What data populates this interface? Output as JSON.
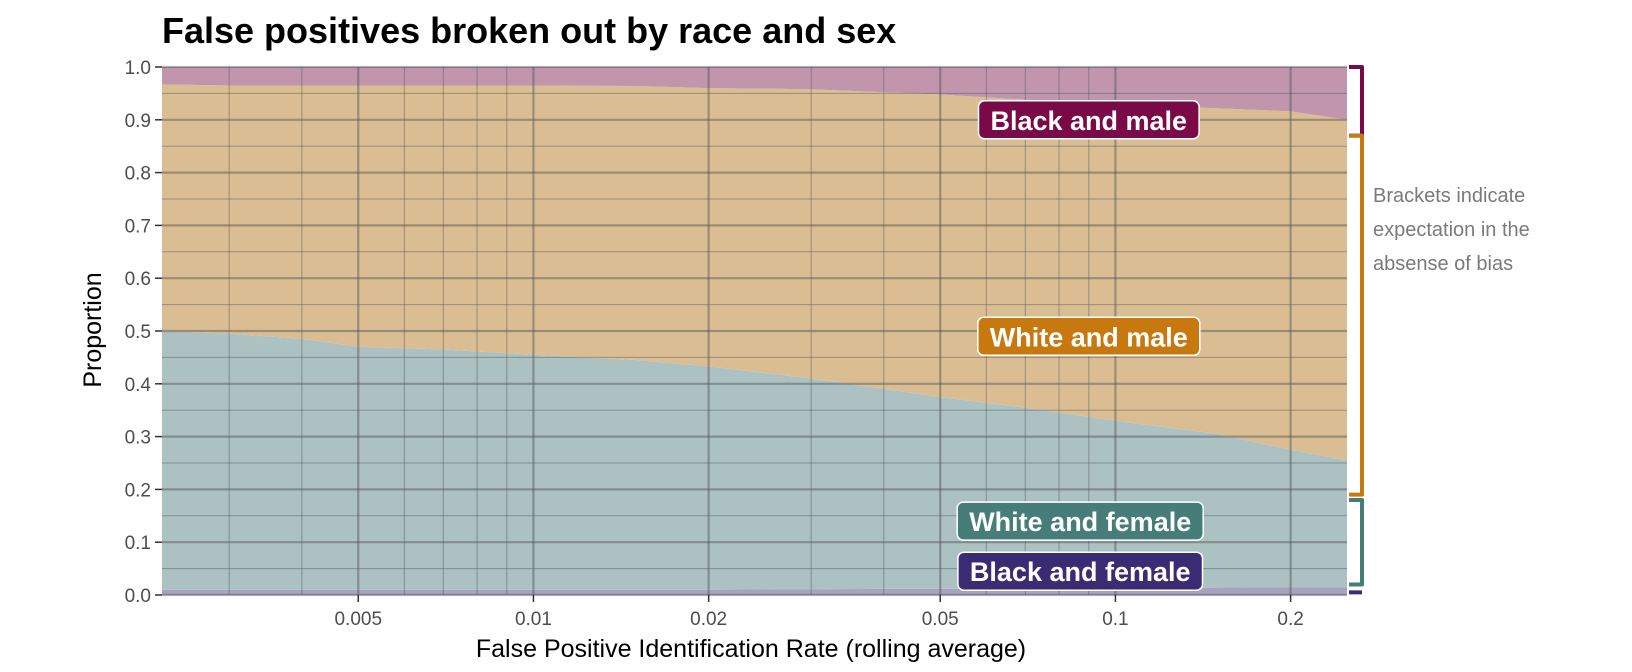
{
  "chart_data": {
    "type": "area",
    "stacked": true,
    "title": "False positives broken out by race and sex",
    "xlabel": "False Positive Identification Rate (rolling average)",
    "ylabel": "Proportion",
    "x_scale": "log",
    "xlim": [
      0.0023,
      0.25
    ],
    "ylim": [
      0,
      1
    ],
    "x_ticks": [
      0.005,
      0.01,
      0.02,
      0.05,
      0.1,
      0.2
    ],
    "x_tick_labels": [
      "0.005",
      "0.01",
      "0.02",
      "0.05",
      "0.1",
      "0.2"
    ],
    "y_ticks": [
      0,
      0.1,
      0.2,
      0.3,
      0.4,
      0.5,
      0.6,
      0.7,
      0.8,
      0.9,
      1.0
    ],
    "y_tick_labels": [
      "0.0",
      "0.1",
      "0.2",
      "0.3",
      "0.4",
      "0.5",
      "0.6",
      "0.7",
      "0.8",
      "0.9",
      "1.0"
    ],
    "grid": true,
    "x": [
      0.0023,
      0.003,
      0.004,
      0.005,
      0.007,
      0.01,
      0.015,
      0.02,
      0.03,
      0.05,
      0.07,
      0.1,
      0.15,
      0.2,
      0.25
    ],
    "series": [
      {
        "name": "Black and female",
        "color": "#3a2c73",
        "fill": "#a7a2c0",
        "values": [
          0.01,
          0.01,
          0.01,
          0.01,
          0.01,
          0.01,
          0.01,
          0.01,
          0.011,
          0.012,
          0.012,
          0.013,
          0.014,
          0.015,
          0.015
        ]
      },
      {
        "name": "White and female",
        "color": "#467d79",
        "fill": "#acc1c1",
        "values": [
          0.49,
          0.485,
          0.475,
          0.46,
          0.455,
          0.445,
          0.435,
          0.423,
          0.399,
          0.363,
          0.343,
          0.317,
          0.291,
          0.26,
          0.24
        ]
      },
      {
        "name": "White and male",
        "color": "#c7790f",
        "fill": "#dabd93",
        "values": [
          0.467,
          0.47,
          0.48,
          0.495,
          0.5,
          0.51,
          0.519,
          0.527,
          0.548,
          0.573,
          0.583,
          0.598,
          0.617,
          0.641,
          0.645
        ]
      },
      {
        "name": "Black and male",
        "color": "#7a0947",
        "fill": "#c196ac",
        "values": [
          0.033,
          0.035,
          0.035,
          0.035,
          0.035,
          0.035,
          0.036,
          0.04,
          0.042,
          0.052,
          0.062,
          0.072,
          0.078,
          0.084,
          0.1
        ]
      }
    ],
    "labels": [
      {
        "text": "Black and male",
        "series": "Black and male",
        "x": 0.09,
        "y": 0.9
      },
      {
        "text": "White and male",
        "series": "White and male",
        "x": 0.09,
        "y": 0.49
      },
      {
        "text": "White and female",
        "series": "White and female",
        "x": 0.087,
        "y": 0.14
      },
      {
        "text": "Black and female",
        "series": "Black and female",
        "x": 0.087,
        "y": 0.045
      }
    ],
    "brackets": [
      {
        "series": "Black and male",
        "from": 0.87,
        "to": 1.0
      },
      {
        "series": "White and male",
        "from": 0.19,
        "to": 0.87
      },
      {
        "series": "White and female",
        "from": 0.02,
        "to": 0.18
      },
      {
        "series": "Black and female",
        "from": 0.0,
        "to": 0.01
      }
    ],
    "annotation": [
      "Brackets indicate",
      "expectation in the",
      "absense of bias"
    ]
  }
}
